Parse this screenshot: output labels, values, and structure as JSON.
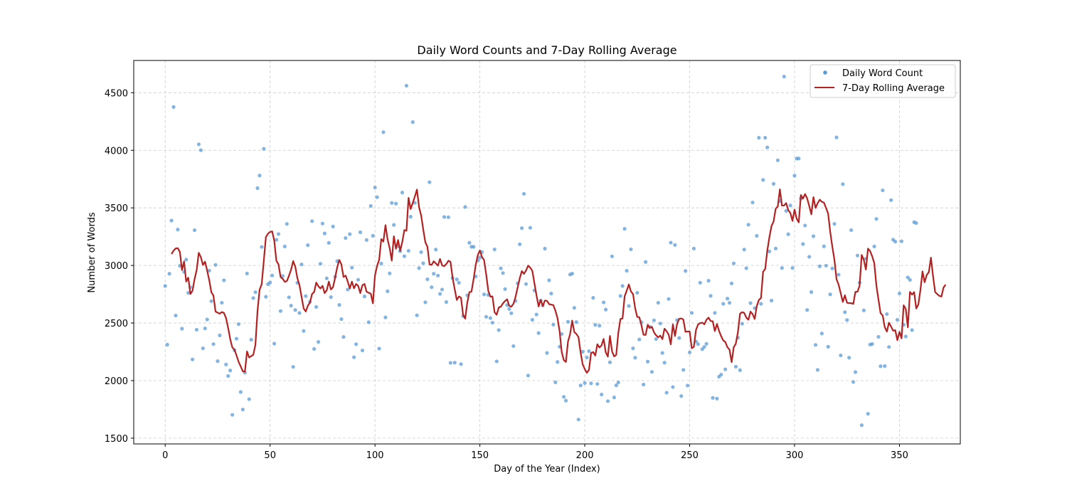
{
  "colors": {
    "scatter": "#5b9bd5",
    "line": "#b22222",
    "grid": "#cccccc",
    "axis": "#000000"
  },
  "chart_data": {
    "type": "scatter",
    "title": "Daily Word Counts and 7-Day Rolling Average",
    "xlabel": "Day of the Year (Index)",
    "ylabel": "Number of Words",
    "xlim": [
      -15,
      379
    ],
    "ylim": [
      1450,
      4780
    ],
    "xticks": [
      0,
      50,
      100,
      150,
      200,
      250,
      300,
      350
    ],
    "yticks": [
      1500,
      2000,
      2500,
      3000,
      3500,
      4000,
      4500
    ],
    "grid": true,
    "grid_style": "dashed",
    "legend_position": "top-right",
    "series": [
      {
        "name": "Daily Word Count",
        "kind": "scatter",
        "color": "#5b9bd5",
        "y": [
          2822,
          2312,
          2928,
          3390,
          4376,
          2565,
          3312,
          2997,
          2451,
          2944,
          3051,
          2762,
          2810,
          2184,
          3306,
          2442,
          4052,
          4001,
          2280,
          2453,
          2531,
          2955,
          2690,
          2317,
          3005,
          2169,
          2393,
          2676,
          2871,
          2140,
          2040,
          2088,
          1703,
          2264,
          2364,
          2490,
          1901,
          1749,
          2069,
          2930,
          1839,
          2355,
          2717,
          2768,
          3671,
          3781,
          3161,
          4013,
          2728,
          2837,
          2852,
          2913,
          2321,
          3223,
          3273,
          2604,
          2908,
          3165,
          3361,
          2723,
          2651,
          2119,
          2613,
          2849,
          2587,
          3009,
          2431,
          2734,
          3176,
          2684,
          3385,
          2275,
          2640,
          2336,
          3015,
          3364,
          3278,
          2888,
          3196,
          2725,
          3338,
          2901,
          3037,
          2657,
          2534,
          2379,
          3238,
          2791,
          3272,
          2981,
          2203,
          2316,
          2876,
          3288,
          2262,
          2731,
          3221,
          2507,
          3517,
          3258,
          3677,
          3593,
          2278,
          3016,
          4157,
          2549,
          2776,
          2931,
          3543,
          3352,
          3537,
          3167,
          3124,
          3633,
          3080,
          4561,
          3127,
          3423,
          4245,
          3544,
          2567,
          2977,
          3116,
          3019,
          2680,
          2880,
          3723,
          2811,
          2928,
          3138,
          2912,
          2753,
          2791,
          3421,
          2682,
          3419,
          2154,
          2890,
          2156,
          2879,
          2850,
          2143,
          2560,
          3508,
          2741,
          3197,
          3162,
          3162,
          2904,
          3043,
          3068,
          3116,
          2749,
          2554,
          2744,
          2543,
          2503,
          3139,
          2167,
          2439,
          2975,
          2934,
          2795,
          2656,
          2622,
          2585,
          2300,
          2692,
          2845,
          3184,
          3324,
          3622,
          2839,
          2044,
          3327,
          2528,
          2783,
          2574,
          2413,
          2694,
          2653,
          3146,
          2240,
          2871,
          2756,
          2486,
          1985,
          2162,
          2294,
          2405,
          1859,
          1826,
          2511,
          2921,
          2929,
          2632,
          2508,
          1662,
          1958,
          2251,
          1979,
          2201,
          2255,
          1976,
          2719,
          2484,
          1971,
          2477,
          1879,
          2679,
          2617,
          1822,
          2159,
          3079,
          1854,
          1959,
          1984,
          2735,
          2822,
          3318,
          2954,
          2648,
          3140,
          2280,
          2199,
          2763,
          2357,
          2507,
          1966,
          3030,
          2165,
          2467,
          2076,
          2523,
          2361,
          2676,
          2496,
          2240,
          2156,
          1895,
          2709,
          3198,
          1944,
          3178,
          2525,
          2370,
          1866,
          2093,
          2952,
          1957,
          2245,
          2588,
          3147,
          2340,
          2317,
          2850,
          2273,
          2293,
          2320,
          2867,
          2736,
          1850,
          2588,
          1844,
          2034,
          2052,
          2667,
          2098,
          2712,
          2675,
          2844,
          3018,
          2121,
          2373,
          2091,
          2494,
          3138,
          2976,
          3354,
          2673,
          3547,
          2629,
          3257,
          4109,
          2667,
          3743,
          4109,
          4025,
          3122,
          2695,
          3709,
          3147,
          3913,
          3559,
          2978,
          4640,
          3474,
          3271,
          3521,
          2978,
          3780,
          3928,
          3929,
          3580,
          3186,
          3347,
          2613,
          3075,
          2769,
          3254,
          2310,
          2093,
          2993,
          2409,
          3166,
          2998,
          2294,
          2749,
          2974,
          3361,
          4112,
          2920,
          2219,
          3706,
          2594,
          2526,
          2199,
          3307,
          1988,
          2074,
          3086,
          2851,
          1613,
          2610,
          3059,
          1712,
          2313,
          2318,
          3165,
          3404,
          2380,
          2125,
          3652,
          2126,
          2578,
          2292,
          3567,
          3224,
          3207,
          2528,
          2757,
          3210,
          2485,
          2383,
          2896,
          2875,
          2439,
          3376,
          3368
        ]
      },
      {
        "name": "7-Day Rolling Average",
        "kind": "line",
        "color": "#b22222",
        "x_start": 3,
        "y": [
          3099,
          3128,
          3148,
          3150,
          3117,
          2960,
          3035,
          2860,
          2894,
          2752,
          2780,
          2882,
          2960,
          3110,
          3073,
          3004,
          3033,
          2956,
          2872,
          2768,
          2738,
          2600,
          2590,
          2581,
          2595,
          2588,
          2543,
          2458,
          2360,
          2288,
          2270,
          2218,
          2163,
          2123,
          2081,
          2078,
          2253,
          2201,
          2212,
          2225,
          2310,
          2604,
          2789,
          2838,
          3040,
          3246,
          3276,
          3291,
          3296,
          3213,
          3040,
          3010,
          2899,
          2885,
          2858,
          2864,
          2910,
          2963,
          3038,
          2990,
          2890,
          2830,
          2728,
          2627,
          2600,
          2651,
          2677,
          2752,
          2770,
          2851,
          2820,
          2800,
          2823,
          2760,
          2784,
          2860,
          2791,
          2812,
          2894,
          2985,
          3048,
          3009,
          2900,
          2912,
          2860,
          2800,
          2860,
          2801,
          2839,
          2822,
          2760,
          2828,
          2839,
          2771,
          2763,
          2755,
          2671,
          2913,
          2996,
          3050,
          3229,
          3207,
          3350,
          3226,
          3150,
          3042,
          3253,
          3145,
          3221,
          3127,
          3203,
          3307,
          3301,
          3587,
          3490,
          3543,
          3599,
          3659,
          3507,
          3434,
          3313,
          3202,
          3162,
          3009,
          3005,
          3036,
          3018,
          2998,
          3057,
          3000,
          2994,
          3012,
          3041,
          3031,
          2893,
          2794,
          2700,
          2731,
          2720,
          2570,
          2538,
          2678,
          2768,
          2773,
          2881,
          3003,
          3089,
          3131,
          3073,
          3047,
          2923,
          2781,
          2729,
          2731,
          2594,
          2572,
          2635,
          2642,
          2671,
          2691,
          2706,
          2649,
          2642,
          2667,
          2727,
          2808,
          2888,
          2951,
          2927,
          2956,
          2998,
          2981,
          2953,
          2846,
          2739,
          2644,
          2701,
          2648,
          2695,
          2693,
          2664,
          2660,
          2656,
          2607,
          2543,
          2428,
          2249,
          2178,
          2162,
          2339,
          2403,
          2521,
          2422,
          2405,
          2377,
          2246,
          2141,
          2100,
          2068,
          2093,
          2239,
          2248,
          2217,
          2316,
          2287,
          2306,
          2362,
          2246,
          2208,
          2388,
          2254,
          2210,
          2224,
          2416,
          2535,
          2539,
          2732,
          2781,
          2835,
          2775,
          2752,
          2630,
          2553,
          2550,
          2481,
          2398,
          2397,
          2485,
          2457,
          2467,
          2419,
          2393,
          2376,
          2391,
          2360,
          2451,
          2429,
          2399,
          2315,
          2488,
          2387,
          2492,
          2537,
          2540,
          2530,
          2424,
          2426,
          2426,
          2281,
          2293,
          2439,
          2487,
          2500,
          2503,
          2489,
          2528,
          2547,
          2517,
          2516,
          2430,
          2492,
          2432,
          2386,
          2349,
          2335,
          2290,
          2269,
          2160,
          2289,
          2321,
          2420,
          2581,
          2594,
          2588,
          2547,
          2528,
          2599,
          2577,
          2535,
          2647,
          2701,
          2717,
          2945,
          2970,
          3129,
          3245,
          3342,
          3382,
          3493,
          3513,
          3661,
          3520,
          3520,
          3542,
          3480,
          3456,
          3387,
          3485,
          3406,
          3374,
          3612,
          3580,
          3620,
          3582,
          3516,
          3444,
          3593,
          3499,
          3541,
          3571,
          3553,
          3546,
          3499,
          3451,
          3291,
          3162,
          3049,
          2880,
          2833,
          2759,
          2683,
          2741,
          2676,
          2673,
          2673,
          2666,
          2771,
          2772,
          2824,
          3091,
          3049,
          2964,
          3146,
          3125,
          3079,
          3020,
          2826,
          2703,
          2585,
          2566,
          2464,
          2426,
          2503,
          2469,
          2433,
          2438,
          2351,
          2424,
          2367,
          2654,
          2623,
          2463,
          2770,
          2747,
          2769,
          2626,
          2661,
          2787,
          2948,
          2854,
          2918,
          2941,
          3068,
          2909,
          2770,
          2751,
          2736,
          2730,
          2808,
          2833
        ]
      }
    ]
  }
}
